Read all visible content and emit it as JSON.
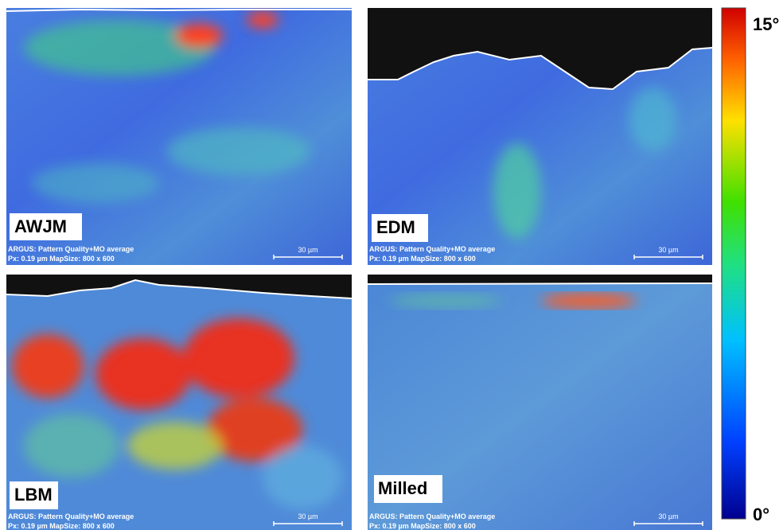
{
  "panels": [
    {
      "label": "AWJM",
      "caption_line1": "ARGUS: Pattern Quality+MO average",
      "caption_line2": "Px: 0.19 µm  MapSize: 800 x 600",
      "scale_label": "30 µm"
    },
    {
      "label": "EDM",
      "caption_line1": "ARGUS: Pattern Quality+MO average",
      "caption_line2": "Px: 0.19 µm  MapSize: 800 x 600",
      "scale_label": "30 µm"
    },
    {
      "label": "LBM",
      "caption_line1": "ARGUS: Pattern Quality+MO average",
      "caption_line2": "Px: 0.19 µm  MapSize: 800 x 600",
      "scale_label": "30 µm"
    },
    {
      "label": "Milled",
      "caption_line1": "ARGUS: Pattern Quality+MO average",
      "caption_line2": "Px: 0.19 µm  MapSize: 800 x 600",
      "scale_label": "30 µm"
    }
  ],
  "colorbar": {
    "max_label": "15°",
    "min_label": "0°"
  }
}
